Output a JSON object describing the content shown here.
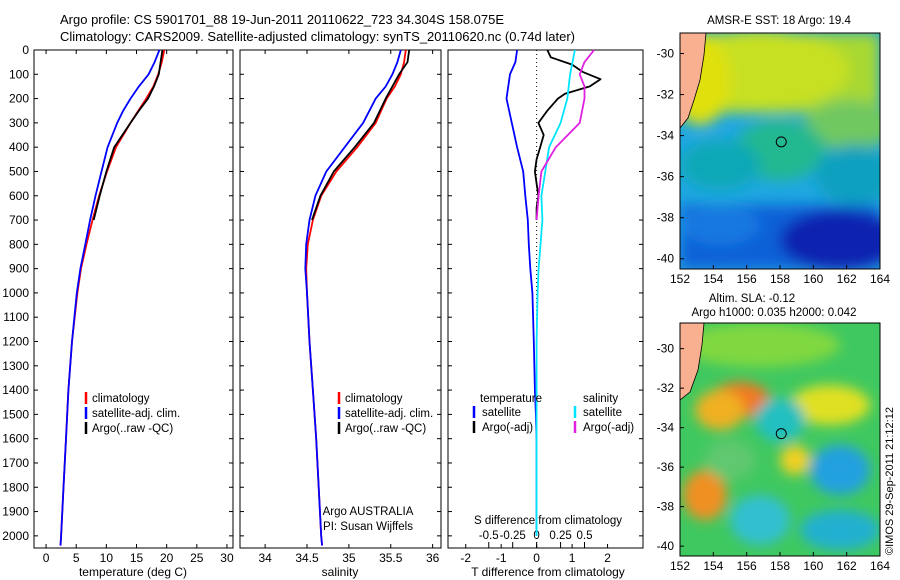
{
  "header": {
    "line1": "Argo profile: CS 5901701_88 19-Jun-2011 20110622_723 34.304S 158.075E",
    "line2": "Climatology: CARS2009. Satellite-adjusted climatology: synTS_20110620.nc (0.74d later)"
  },
  "footer_stamp": "©IMOS 29-Sep-2011 21:12:12",
  "colors": {
    "climatology": "#ff0000",
    "satellite": "#0000ff",
    "argo": "#000000",
    "salinity_satellite": "#00e5ff",
    "salinity_argo": "#e020e0"
  },
  "depth_axis": {
    "range": [
      0,
      2050
    ],
    "ticks": [
      0,
      100,
      200,
      300,
      400,
      500,
      600,
      700,
      800,
      900,
      1000,
      1100,
      1200,
      1300,
      1400,
      1500,
      1600,
      1700,
      1800,
      1900,
      2000
    ],
    "tick_labels": [
      "0",
      "100",
      "200",
      "300",
      "400",
      "500",
      "600",
      "700",
      "800",
      "900",
      "1000",
      "1100",
      "1200",
      "1300",
      "1400",
      "1500",
      "1600",
      "1700",
      "1800",
      "1900",
      "2000"
    ]
  },
  "chart_data": [
    {
      "id": "temperature",
      "type": "line",
      "xlabel": "temperature (deg C)",
      "xlim": [
        -2,
        31
      ],
      "xticks": [
        0,
        5,
        10,
        15,
        20,
        25,
        30
      ],
      "xtick_labels": [
        "0",
        "5",
        "10",
        "15",
        "20",
        "25",
        "30"
      ],
      "legend": [
        "climatology",
        "satellite-adj. clim.",
        "Argo(..raw -QC)"
      ],
      "series": [
        {
          "name": "climatology",
          "color": "#ff0000",
          "depth": [
            0,
            50,
            100,
            150,
            200,
            250,
            300,
            400,
            500,
            600,
            700,
            800,
            900,
            1000,
            1200,
            1400,
            1600,
            1800,
            2000,
            2040
          ],
          "values": [
            19.6,
            19.2,
            18.6,
            17.8,
            16.6,
            15.3,
            14.0,
            11.6,
            10.1,
            8.8,
            7.7,
            6.7,
            5.8,
            5.2,
            4.3,
            3.7,
            3.3,
            2.9,
            2.5,
            2.4
          ]
        },
        {
          "name": "satellite-adj. clim.",
          "color": "#0000ff",
          "depth": [
            0,
            50,
            100,
            150,
            200,
            250,
            300,
            400,
            500,
            600,
            700,
            800,
            900,
            1000,
            1200,
            1400,
            1600,
            1800,
            2000,
            2040
          ],
          "values": [
            18.8,
            18.0,
            17.0,
            15.4,
            14.0,
            12.8,
            11.8,
            10.2,
            9.2,
            8.2,
            7.3,
            6.5,
            5.7,
            5.1,
            4.3,
            3.7,
            3.3,
            2.9,
            2.5,
            2.4
          ]
        },
        {
          "name": "Argo(..raw -QC)",
          "color": "#000000",
          "depth": [
            0,
            50,
            100,
            150,
            200,
            250,
            300,
            400,
            500,
            600,
            700
          ],
          "values": [
            19.3,
            19.0,
            18.7,
            17.9,
            16.9,
            15.4,
            14.0,
            11.3,
            10.0,
            8.9,
            7.9
          ]
        }
      ]
    },
    {
      "id": "salinity",
      "type": "line",
      "xlabel": "salinity",
      "xlim": [
        33.7,
        36.1
      ],
      "xticks": [
        34,
        34.5,
        35,
        35.5,
        36
      ],
      "xtick_labels": [
        "34",
        "34.5",
        "35",
        "35.5",
        "36"
      ],
      "legend": [
        "climatology",
        "satellite-adj. clim.",
        "Argo(..raw -QC)"
      ],
      "annotation": [
        "Argo AUSTRALIA",
        "PI: Susan Wijffels"
      ],
      "series": [
        {
          "name": "climatology",
          "color": "#ff0000",
          "depth": [
            0,
            50,
            100,
            150,
            200,
            300,
            400,
            500,
            600,
            700,
            800,
            900,
            1000,
            1200,
            1400,
            1600,
            1800,
            2000,
            2040
          ],
          "values": [
            35.68,
            35.66,
            35.62,
            35.55,
            35.45,
            35.32,
            35.1,
            34.85,
            34.67,
            34.57,
            34.51,
            34.49,
            34.5,
            34.53,
            34.57,
            34.61,
            34.64,
            34.67,
            34.68
          ]
        },
        {
          "name": "satellite-adj. clim.",
          "color": "#0000ff",
          "depth": [
            0,
            50,
            100,
            150,
            200,
            300,
            400,
            500,
            600,
            700,
            800,
            900,
            1000,
            1200,
            1400,
            1600,
            1800,
            2000,
            2040
          ],
          "values": [
            35.62,
            35.58,
            35.52,
            35.44,
            35.32,
            35.17,
            34.95,
            34.73,
            34.6,
            34.53,
            34.49,
            34.48,
            34.5,
            34.53,
            34.57,
            34.61,
            34.64,
            34.67,
            34.68
          ]
        },
        {
          "name": "Argo(..raw -QC)",
          "color": "#000000",
          "depth": [
            0,
            50,
            100,
            150,
            200,
            300,
            400,
            500,
            600,
            700
          ],
          "values": [
            35.72,
            35.7,
            35.6,
            35.52,
            35.44,
            35.3,
            35.07,
            34.82,
            34.66,
            34.56
          ]
        }
      ]
    },
    {
      "id": "difference",
      "type": "line",
      "xlabel": "T difference from climatology",
      "top_label": "S difference from climatology",
      "xlim": [
        -2.5,
        3.0
      ],
      "xticks": [
        -2,
        -1,
        0,
        1,
        2
      ],
      "xtick_labels": [
        "-2",
        "-1",
        "0",
        "1",
        "2"
      ],
      "s_ticks": [
        -0.5,
        -0.25,
        0,
        0.25,
        0.5
      ],
      "s_tick_labels": [
        "-0.5",
        "-0.25",
        "0",
        "0.25",
        "0.5"
      ],
      "legend_left_title": "temperature",
      "legend_right_title": "salinity",
      "legend": [
        "satellite",
        "Argo(-adj)",
        "satellite",
        "Argo(-adj)"
      ],
      "series": [
        {
          "name": "temperature satellite",
          "color": "#0000ff",
          "depth": [
            0,
            50,
            100,
            200,
            300,
            400,
            500,
            600,
            700,
            800,
            900,
            1000,
            1200,
            1400,
            1500,
            1600,
            2000
          ],
          "values": [
            -0.55,
            -0.6,
            -0.75,
            -0.85,
            -0.7,
            -0.55,
            -0.38,
            -0.32,
            -0.25,
            -0.22,
            -0.18,
            -0.12,
            -0.08,
            -0.05,
            -0.02,
            0,
            0
          ]
        },
        {
          "name": "temperature Argo(-adj)",
          "color": "#000000",
          "depth": [
            0,
            30,
            60,
            90,
            120,
            150,
            180,
            200,
            250,
            300,
            350,
            400,
            450,
            500,
            550,
            600,
            650,
            700
          ],
          "values": [
            0.3,
            0.4,
            1.0,
            1.3,
            1.8,
            1.5,
            0.8,
            0.6,
            0.3,
            0.05,
            0.2,
            0.1,
            0.0,
            -0.05,
            0.0,
            0.05,
            0.0,
            0.0
          ]
        },
        {
          "name": "salinity satellite",
          "color": "#00e5ff",
          "depth": [
            0,
            100,
            200,
            300,
            400,
            500,
            600,
            700,
            800,
            900,
            1000,
            1200,
            1400,
            1600,
            2000
          ],
          "values": [
            0.4,
            0.35,
            0.32,
            0.25,
            0.13,
            0.09,
            0.05,
            0.06,
            0.04,
            0.02,
            0.01,
            0,
            0,
            0,
            0
          ]
        },
        {
          "name": "salinity Argo(-adj)",
          "color": "#e020e0",
          "depth": [
            0,
            50,
            100,
            150,
            200,
            300,
            400,
            500,
            600,
            700
          ],
          "values": [
            0.6,
            0.5,
            0.45,
            0.5,
            0.5,
            0.45,
            0.2,
            0.05,
            0.02,
            0.0
          ]
        }
      ]
    }
  ],
  "maps": [
    {
      "id": "sst_map",
      "title": "AMSR-E SST: 18 Argo: 19.4",
      "xticks": [
        "152",
        "154",
        "156",
        "158",
        "160",
        "162",
        "164"
      ],
      "yticks": [
        "-30",
        "-32",
        "-34",
        "-36",
        "-38",
        "-40"
      ],
      "xrange": [
        152,
        164
      ],
      "yrange": [
        -29,
        -40.5
      ],
      "marker": {
        "lon": 158.075,
        "lat": -34.304
      }
    },
    {
      "id": "sla_map",
      "title": "Altim. SLA: -0.12",
      "subtitle": "Argo h1000: 0.035 h2000: 0.042",
      "xticks": [
        "152",
        "154",
        "156",
        "158",
        "160",
        "162",
        "164"
      ],
      "yticks": [
        "-30",
        "-32",
        "-34",
        "-36",
        "-38",
        "-40"
      ],
      "xrange": [
        152,
        164
      ],
      "yrange": [
        -28.7,
        -40.5
      ],
      "marker": {
        "lon": 158.075,
        "lat": -34.304
      }
    }
  ]
}
